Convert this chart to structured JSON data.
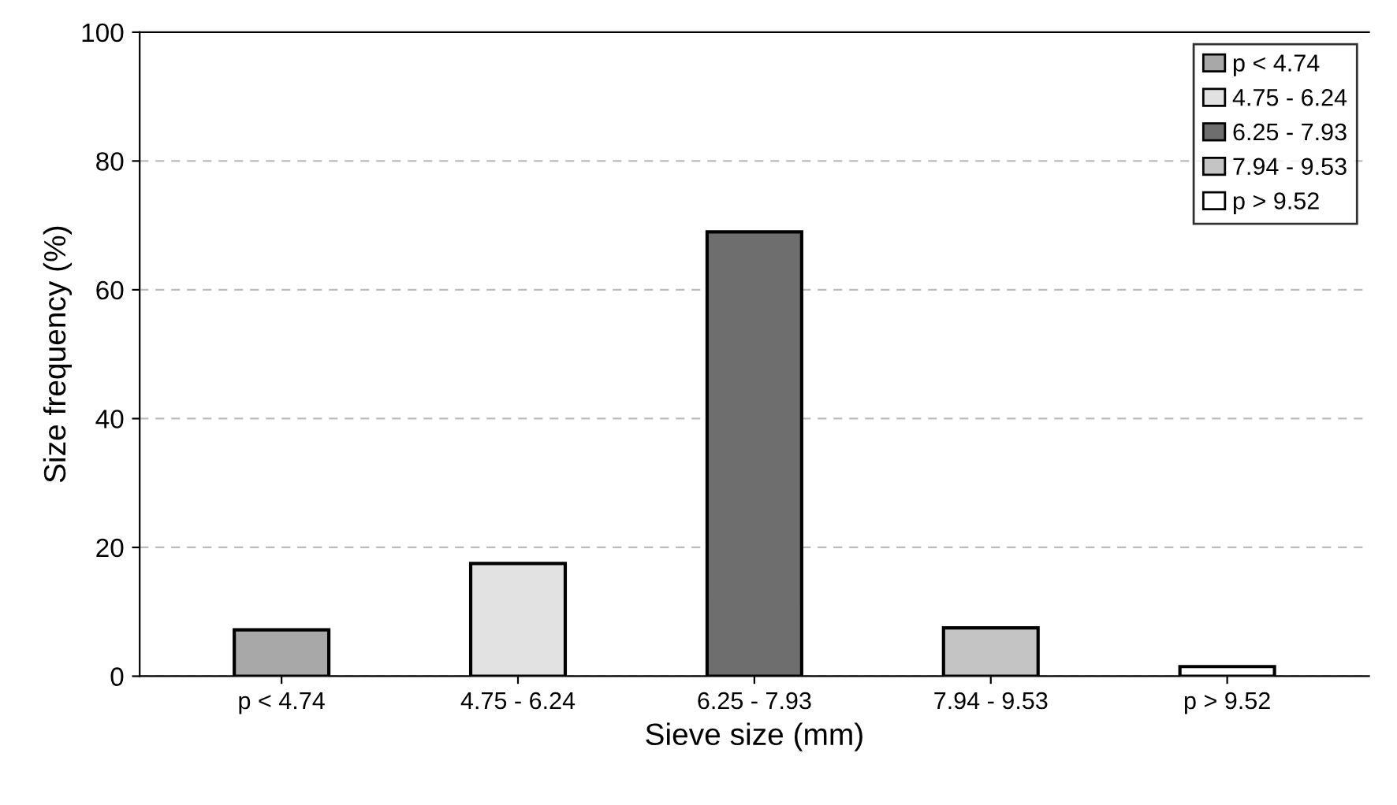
{
  "chart_data": {
    "type": "bar",
    "xlabel": "Sieve size (mm)",
    "ylabel": "Size frequency (%)",
    "categories": [
      "p < 4.74",
      "4.75 - 6.24",
      "6.25 - 7.93",
      "7.94 - 9.53",
      "p > 9.52"
    ],
    "series": [
      {
        "name": "p < 4.74",
        "color": "#a8a8a8",
        "values": [
          7.2,
          null,
          null,
          null,
          null
        ]
      },
      {
        "name": "4.75 - 6.24",
        "color": "#e2e2e2",
        "values": [
          null,
          17.5,
          null,
          null,
          null
        ]
      },
      {
        "name": "6.25 - 7.93",
        "color": "#6e6e6e",
        "values": [
          null,
          null,
          69,
          null,
          null
        ]
      },
      {
        "name": "7.94 - 9.53",
        "color": "#c4c4c4",
        "values": [
          null,
          null,
          null,
          7.5,
          null
        ]
      },
      {
        "name": "p > 9.52",
        "color": "#ffffff",
        "values": [
          null,
          null,
          null,
          null,
          1.5
        ]
      }
    ],
    "ylim": [
      0,
      100
    ],
    "yticks": [
      0,
      20,
      40,
      60,
      80,
      100
    ],
    "grid": "y",
    "legend": "top right"
  }
}
